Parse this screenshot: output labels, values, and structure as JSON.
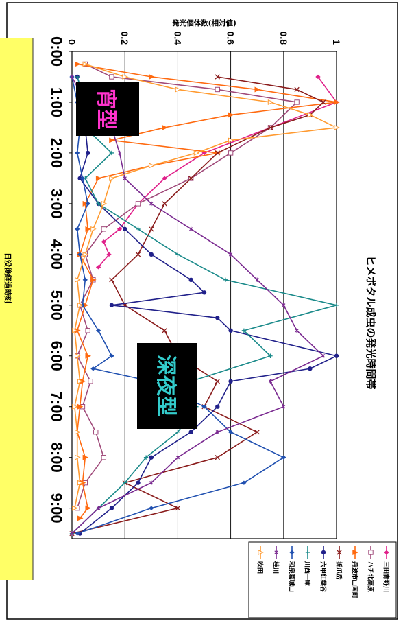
{
  "chart_data": {
    "type": "line",
    "title": "ヒメボタル成虫の発光時間帯",
    "xlabel": "日没後経過時刻",
    "ylabel": "発光個体数(相対値)",
    "x_ticks": [
      "0:00",
      "1:00",
      "2:00",
      "3:00",
      "4:00",
      "5:00",
      "6:00",
      "7:00",
      "8:00",
      "9:00"
    ],
    "y_ticks": [
      "0",
      "0.2",
      "0.4",
      "0.6",
      "0.8",
      "1"
    ],
    "xlim": [
      0,
      9.6
    ],
    "ylim": [
      0,
      1
    ],
    "grid": true,
    "legend_position": "right",
    "annotations": {
      "evening_type": "宵型",
      "late_night_type": "深夜型"
    },
    "series": [
      {
        "name": "三田青野川",
        "color": "#e0208a",
        "marker": "diamond",
        "x": [
          0.5,
          1.0,
          1.5,
          2.0,
          2.5,
          3.0,
          3.5,
          3.75,
          4.0,
          4.25
        ],
        "y": [
          0.93,
          1.0,
          0.75,
          0.5,
          0.35,
          0.25,
          0.18,
          0.12,
          0.14,
          0.1
        ]
      },
      {
        "name": "ハチ北高原",
        "color": "#a04a7a",
        "marker": "square-open",
        "x": [
          0.25,
          0.5,
          0.75,
          1.0,
          1.5,
          2.0,
          2.5,
          3.0,
          3.5,
          4.0,
          4.5,
          5.0,
          5.5,
          6.0,
          6.5,
          7.0,
          7.5,
          8.0,
          8.5,
          9.0
        ],
        "y": [
          0.05,
          0.15,
          0.55,
          0.85,
          0.75,
          0.6,
          0.45,
          0.25,
          0.12,
          0.05,
          0.08,
          0.03,
          0.06,
          0.02,
          0.07,
          0.04,
          0.09,
          0.12,
          0.05,
          0.02
        ]
      },
      {
        "name": "丹波市山南町",
        "color": "#ff6a10",
        "marker": "triangle",
        "x": [
          0.25,
          0.5,
          0.75,
          1.0,
          1.25,
          1.5,
          1.75,
          2.0,
          2.25,
          2.5,
          3.0,
          3.5,
          4.0,
          4.5,
          5.0,
          5.5,
          6.0,
          6.5,
          7.0,
          7.5,
          8.0,
          8.5,
          9.0,
          9.2
        ],
        "y": [
          0.02,
          0.3,
          0.7,
          1.0,
          0.6,
          0.35,
          0.15,
          0.55,
          0.3,
          0.1,
          0.05,
          0.06,
          0.03,
          0.08,
          0.05,
          0.02,
          0.06,
          0.04,
          0.03,
          0.02,
          0.05,
          0.04,
          0.06,
          0.03
        ]
      },
      {
        "name": "折爪岳",
        "color": "#8a1c1c",
        "marker": "x",
        "x": [
          0.5,
          0.75,
          1.0,
          1.25,
          1.5,
          2.0,
          2.5,
          3.0,
          3.5,
          4.0,
          4.5,
          5.0,
          5.5,
          6.0,
          6.5,
          7.0,
          7.5,
          8.0,
          8.5,
          9.0,
          9.5
        ],
        "y": [
          0.55,
          0.85,
          0.95,
          0.9,
          0.75,
          0.55,
          0.45,
          0.35,
          0.3,
          0.25,
          0.15,
          0.2,
          0.35,
          0.4,
          0.55,
          0.5,
          0.7,
          0.55,
          0.2,
          0.4,
          0.0
        ]
      },
      {
        "name": "六甲紅葉谷",
        "color": "#20208a",
        "marker": "circle",
        "x": [
          0.5,
          1.0,
          1.5,
          2.0,
          2.5,
          3.0,
          3.5,
          4.0,
          4.5,
          4.75,
          5.0,
          5.25,
          5.5,
          6.0,
          6.25,
          6.5,
          7.0,
          7.5,
          8.0,
          8.5,
          9.0,
          9.5
        ],
        "y": [
          0.02,
          0.05,
          0.05,
          0.06,
          0.03,
          0.1,
          0.2,
          0.3,
          0.45,
          0.5,
          0.15,
          0.55,
          0.6,
          1.0,
          0.9,
          0.6,
          0.55,
          0.45,
          0.3,
          0.25,
          0.15,
          0.03
        ]
      },
      {
        "name": "川西一庫",
        "color": "#1a8a8a",
        "marker": "plus",
        "x": [
          0.5,
          1.0,
          1.5,
          2.0,
          2.5,
          3.0,
          3.5,
          4.0,
          4.5,
          5.0,
          5.5,
          6.0,
          6.5,
          7.0,
          7.5,
          8.0,
          8.5,
          9.0,
          9.5
        ],
        "y": [
          0.02,
          0.05,
          0.05,
          0.15,
          0.05,
          0.1,
          0.25,
          0.4,
          0.58,
          1.0,
          0.65,
          0.75,
          0.45,
          0.47,
          0.4,
          0.28,
          0.2,
          0.1,
          0.0
        ]
      },
      {
        "name": "和泉葛城山",
        "color": "#2050b0",
        "marker": "diamond",
        "x": [
          0.5,
          1.0,
          1.5,
          2.0,
          2.5,
          3.0,
          3.5,
          4.0,
          4.5,
          5.0,
          5.5,
          6.0,
          6.25,
          6.5,
          7.0,
          7.5,
          8.0,
          8.5,
          9.0,
          9.5
        ],
        "y": [
          0.0,
          0.02,
          0.03,
          0.02,
          0.04,
          0.06,
          0.02,
          0.03,
          0.05,
          0.04,
          0.1,
          0.15,
          0.08,
          0.3,
          0.5,
          0.6,
          0.8,
          0.65,
          0.3,
          0.02
        ]
      },
      {
        "name": "桂川",
        "color": "#7a2a90",
        "marker": "star",
        "x": [
          0.5,
          1.0,
          1.5,
          2.0,
          2.5,
          3.0,
          3.5,
          4.0,
          4.5,
          5.0,
          5.5,
          6.0,
          6.5,
          7.0,
          7.5,
          8.0,
          8.5,
          9.0,
          9.5
        ],
        "y": [
          0.0,
          0.05,
          0.15,
          0.18,
          0.2,
          0.3,
          0.45,
          0.6,
          0.7,
          0.8,
          0.85,
          0.95,
          0.75,
          0.8,
          0.55,
          0.4,
          0.3,
          0.1,
          0.0
        ]
      },
      {
        "name": "吹田",
        "color": "#ff9a30",
        "marker": "triangle-open",
        "x": [
          0.25,
          0.5,
          0.75,
          1.0,
          1.25,
          1.5,
          1.75,
          2.0,
          2.25,
          2.5,
          3.0,
          3.5,
          4.0,
          4.5,
          5.0,
          5.5,
          6.0,
          6.5,
          7.0,
          7.5,
          8.0,
          8.5,
          9.0
        ],
        "y": [
          0.05,
          0.2,
          0.4,
          0.75,
          0.9,
          1.0,
          0.6,
          0.47,
          0.3,
          0.15,
          0.12,
          0.08,
          0.05,
          0.02,
          0.03,
          0.01,
          0.02,
          0.03,
          0.01,
          0.02,
          0.02,
          0.03,
          0.01
        ]
      }
    ]
  }
}
